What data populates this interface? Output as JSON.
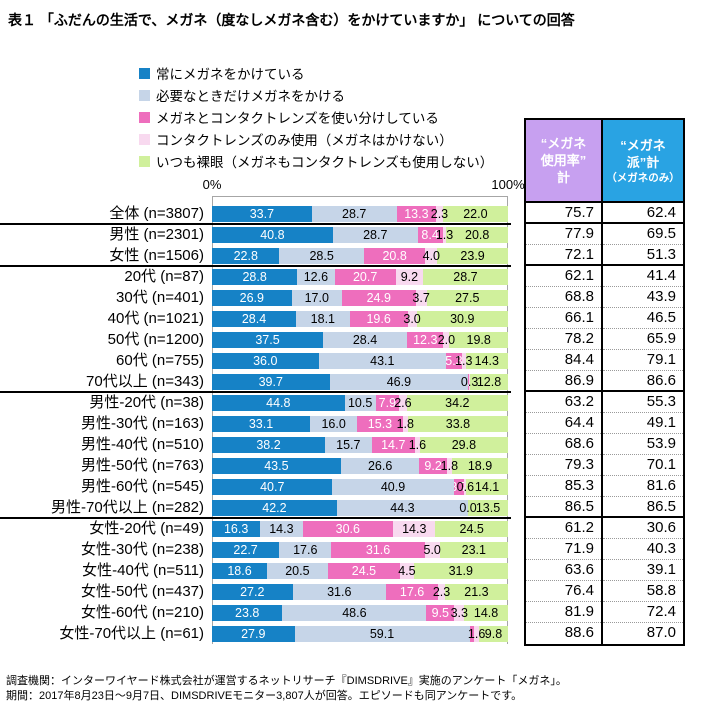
{
  "title": "表１ 「ふだんの生活で、メガネ（度なしメガネ含む）をかけていますか」 についての回答",
  "footer": {
    "source": "調査機関：インターワイヤード株式会社が運営するネットリサーチ『DIMSDRIVE』実施のアンケート「メガネ」。",
    "period": "期間：2017年8月23日～9月7日、DIMSDRIVEモニター3,807人が回答。エピソードも同アンケートです。"
  },
  "right_columns": [
    {
      "lines": [
        "“メガネ",
        "使用率”",
        "計"
      ],
      "bg": "#C7A0F0"
    },
    {
      "lines": [
        "“メガネ",
        "派”計",
        "（メガネのみ）"
      ],
      "bg": "#29A3E3"
    }
  ],
  "chart_data": {
    "type": "bar",
    "stacked": true,
    "orientation": "horizontal",
    "x_axis": {
      "min_label": "0%",
      "max_label": "100%",
      "range": [
        0,
        100
      ],
      "unit": "%"
    },
    "series_names": [
      "常にメガネをかけている",
      "必要なときだけメガネをかける",
      "メガネとコンタクトレンズを使い分けしている",
      "コンタクトレンズのみ使用（メガネはかけない）",
      "いつも裸眼（メガネもコンタクトレンズも使用しない）"
    ],
    "series_colors": [
      "#1682C6",
      "#C6D5E8",
      "#EE6EBD",
      "#F8D9EF",
      "#D0F09C"
    ],
    "summary_column_keys": [
      "“メガネ使用率”計",
      "“メガネ派”計（メガネのみ）"
    ],
    "group_breaks_after_index": [
      0,
      2,
      8,
      14
    ],
    "rows": [
      {
        "label": "全体 (n=3807)",
        "values": [
          33.7,
          28.7,
          13.3,
          2.3,
          22.0
        ],
        "usage": 75.7,
        "glasses": 62.4
      },
      {
        "label": "男性 (n=2301)",
        "values": [
          40.8,
          28.7,
          8.4,
          1.3,
          20.8
        ],
        "usage": 77.9,
        "glasses": 69.5
      },
      {
        "label": "女性 (n=1506)",
        "values": [
          22.8,
          28.5,
          20.8,
          4.0,
          23.9
        ],
        "usage": 72.1,
        "glasses": 51.3
      },
      {
        "label": "20代 (n=87)",
        "values": [
          28.8,
          12.6,
          20.7,
          9.2,
          28.7
        ],
        "usage": 62.1,
        "glasses": 41.4
      },
      {
        "label": "30代 (n=401)",
        "values": [
          26.9,
          17.0,
          24.9,
          3.7,
          27.5
        ],
        "usage": 68.8,
        "glasses": 43.9
      },
      {
        "label": "40代 (n=1021)",
        "values": [
          28.4,
          18.1,
          19.6,
          3.0,
          30.9
        ],
        "usage": 66.1,
        "glasses": 46.5
      },
      {
        "label": "50代 (n=1200)",
        "values": [
          37.5,
          28.4,
          12.3,
          2.0,
          19.8
        ],
        "usage": 78.2,
        "glasses": 65.9
      },
      {
        "label": "60代 (n=755)",
        "values": [
          36.0,
          43.1,
          5.3,
          1.3,
          14.3
        ],
        "usage": 84.4,
        "glasses": 79.1
      },
      {
        "label": "70代以上 (n=343)",
        "values": [
          39.7,
          46.9,
          0.3,
          0.3,
          12.8
        ],
        "usage": 86.9,
        "glasses": 86.6
      },
      {
        "label": "男性-20代 (n=38)",
        "values": [
          44.8,
          10.5,
          7.9,
          2.6,
          34.2
        ],
        "usage": 63.2,
        "glasses": 55.3
      },
      {
        "label": "男性-30代 (n=163)",
        "values": [
          33.1,
          16.0,
          15.3,
          1.8,
          33.8
        ],
        "usage": 64.4,
        "glasses": 49.1
      },
      {
        "label": "男性-40代 (n=510)",
        "values": [
          38.2,
          15.7,
          14.7,
          1.6,
          29.8
        ],
        "usage": 68.6,
        "glasses": 53.9
      },
      {
        "label": "男性-50代 (n=763)",
        "values": [
          43.5,
          26.6,
          9.2,
          1.8,
          18.9
        ],
        "usage": 79.3,
        "glasses": 70.1
      },
      {
        "label": "男性-60代 (n=545)",
        "values": [
          40.7,
          40.9,
          3.7,
          0.6,
          14.1
        ],
        "usage": 85.3,
        "glasses": 81.6
      },
      {
        "label": "男性-70代以上 (n=282)",
        "values": [
          42.2,
          44.3,
          0.0,
          0.0,
          13.5
        ],
        "usage": 86.5,
        "glasses": 86.5
      },
      {
        "label": "女性-20代 (n=49)",
        "values": [
          16.3,
          14.3,
          30.6,
          14.3,
          24.5
        ],
        "usage": 61.2,
        "glasses": 30.6
      },
      {
        "label": "女性-30代 (n=238)",
        "values": [
          22.7,
          17.6,
          31.6,
          5.0,
          23.1
        ],
        "usage": 71.9,
        "glasses": 40.3
      },
      {
        "label": "女性-40代 (n=511)",
        "values": [
          18.6,
          20.5,
          24.5,
          4.5,
          31.9
        ],
        "usage": 63.6,
        "glasses": 39.1
      },
      {
        "label": "女性-50代 (n=437)",
        "values": [
          27.2,
          31.6,
          17.6,
          2.3,
          21.3
        ],
        "usage": 76.4,
        "glasses": 58.8
      },
      {
        "label": "女性-60代 (n=210)",
        "values": [
          23.8,
          48.6,
          9.5,
          3.3,
          14.8
        ],
        "usage": 81.9,
        "glasses": 72.4
      },
      {
        "label": "女性-70代以上 (n=61)",
        "values": [
          27.9,
          59.1,
          1.6,
          1.6,
          9.8
        ],
        "usage": 88.6,
        "glasses": 87.0
      }
    ]
  }
}
